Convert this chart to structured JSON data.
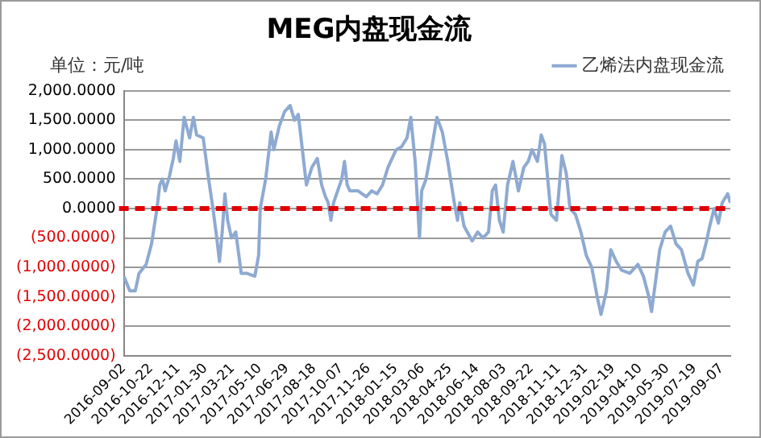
{
  "chart_data": {
    "type": "line",
    "title": "MEG内盘现金流",
    "ylabel": "单位：元/吨",
    "legend": "top right",
    "grid": "y",
    "ylim": [
      -2500,
      2000
    ],
    "yticks": [
      {
        "value": 2000,
        "label": "2,000.0000"
      },
      {
        "value": 1500,
        "label": "1,500.0000"
      },
      {
        "value": 1000,
        "label": "1,000.0000"
      },
      {
        "value": 500,
        "label": "500.0000"
      },
      {
        "value": 0,
        "label": "0.0000"
      },
      {
        "value": -500,
        "label": "(500.0000)"
      },
      {
        "value": -1000,
        "label": "(1,000.0000)"
      },
      {
        "value": -1500,
        "label": "(1,500.0000)"
      },
      {
        "value": -2000,
        "label": "(2,000.0000)"
      },
      {
        "value": -2500,
        "label": "(2,500.0000)"
      }
    ],
    "xlim": [
      "2016-09-02",
      "2019-09-23"
    ],
    "xticks": [
      "2016-09-02",
      "2016-10-22",
      "2016-12-11",
      "2017-01-30",
      "2017-03-21",
      "2017-05-10",
      "2017-06-29",
      "2017-08-18",
      "2017-10-07",
      "2017-11-26",
      "2018-01-15",
      "2018-03-06",
      "2018-04-25",
      "2018-06-14",
      "2018-08-03",
      "2018-09-22",
      "2018-11-11",
      "2018-12-31",
      "2019-02-19",
      "2019-04-10",
      "2019-05-30",
      "2019-07-19",
      "2019-09-07"
    ],
    "ref_lines": [
      {
        "axis": "y",
        "value": 0,
        "color": "#e00000",
        "line_style": "dashed"
      }
    ],
    "marker": "none",
    "line_style": "solid",
    "x": [
      "2016-09-02",
      "2016-09-13",
      "2016-09-23",
      "2016-09-30",
      "2016-10-13",
      "2016-10-23",
      "2016-11-02",
      "2016-11-07",
      "2016-11-12",
      "2016-11-17",
      "2016-11-25",
      "2016-12-02",
      "2016-12-07",
      "2016-12-14",
      "2016-12-22",
      "2017-01-01",
      "2017-01-08",
      "2017-01-14",
      "2017-01-26",
      "2017-02-05",
      "2017-02-13",
      "2017-02-20",
      "2017-02-25",
      "2017-03-02",
      "2017-03-07",
      "2017-03-12",
      "2017-03-19",
      "2017-03-27",
      "2017-04-06",
      "2017-04-16",
      "2017-05-01",
      "2017-05-08",
      "2017-05-11",
      "2017-05-21",
      "2017-05-31",
      "2017-06-05",
      "2017-06-15",
      "2017-06-25",
      "2017-07-05",
      "2017-07-13",
      "2017-07-20",
      "2017-07-25",
      "2017-08-04",
      "2017-08-14",
      "2017-08-24",
      "2017-09-01",
      "2017-09-08",
      "2017-09-13",
      "2017-09-18",
      "2017-09-23",
      "2017-10-08",
      "2017-10-13",
      "2017-10-18",
      "2017-10-23",
      "2017-11-07",
      "2017-11-22",
      "2017-12-02",
      "2017-12-12",
      "2017-12-22",
      "2018-01-01",
      "2018-01-16",
      "2018-01-26",
      "2018-02-05",
      "2018-02-12",
      "2018-02-20",
      "2018-02-28",
      "2018-03-04",
      "2018-03-12",
      "2018-03-22",
      "2018-04-01",
      "2018-04-11",
      "2018-04-21",
      "2018-05-03",
      "2018-05-09",
      "2018-05-13",
      "2018-05-21",
      "2018-06-05",
      "2018-06-15",
      "2018-06-25",
      "2018-07-05",
      "2018-07-12",
      "2018-07-18",
      "2018-07-25",
      "2018-08-01",
      "2018-08-09",
      "2018-08-19",
      "2018-08-29",
      "2018-09-08",
      "2018-09-16",
      "2018-09-23",
      "2018-10-03",
      "2018-10-10",
      "2018-10-16",
      "2018-10-28",
      "2018-11-07",
      "2018-11-17",
      "2018-11-25",
      "2018-12-02",
      "2018-12-12",
      "2018-12-22",
      "2019-01-01",
      "2019-01-11",
      "2019-01-21",
      "2019-01-28",
      "2019-02-07",
      "2019-02-15",
      "2019-02-25",
      "2019-03-07",
      "2019-03-22",
      "2019-04-06",
      "2019-04-16",
      "2019-04-26",
      "2019-05-01",
      "2019-05-06",
      "2019-05-16",
      "2019-05-26",
      "2019-06-05",
      "2019-06-15",
      "2019-06-25",
      "2019-07-07",
      "2019-07-17",
      "2019-07-25",
      "2019-08-02",
      "2019-08-09",
      "2019-08-16",
      "2019-08-24",
      "2019-09-01",
      "2019-09-08",
      "2019-09-18",
      "2019-09-23"
    ],
    "series": [
      {
        "name": "乙烯法内盘现金流",
        "color": "#8eaad2",
        "values": [
          -1150,
          -1400,
          -1400,
          -1100,
          -950,
          -600,
          0,
          400,
          500,
          300,
          550,
          850,
          1150,
          800,
          1550,
          1200,
          1550,
          1250,
          1200,
          500,
          0,
          -500,
          -900,
          -400,
          250,
          -200,
          -500,
          -400,
          -1100,
          -1100,
          -1150,
          -800,
          0,
          500,
          1300,
          1000,
          1400,
          1650,
          1750,
          1500,
          1600,
          1200,
          400,
          700,
          850,
          400,
          200,
          100,
          -200,
          100,
          500,
          800,
          400,
          300,
          300,
          200,
          300,
          250,
          400,
          700,
          1000,
          1050,
          1200,
          1550,
          800,
          -500,
          300,
          500,
          1000,
          1550,
          1300,
          800,
          100,
          -200,
          100,
          -300,
          -550,
          -400,
          -500,
          -400,
          300,
          400,
          -200,
          -400,
          400,
          800,
          300,
          700,
          800,
          1000,
          800,
          1250,
          1100,
          -100,
          -200,
          900,
          600,
          0,
          -100,
          -400,
          -800,
          -1000,
          -1500,
          -1800,
          -1400,
          -700,
          -900,
          -1050,
          -1100,
          -950,
          -1150,
          -1500,
          -1750,
          -1400,
          -700,
          -400,
          -300,
          -600,
          -700,
          -1100,
          -1300,
          -900,
          -850,
          -600,
          -300,
          0,
          -250,
          100,
          250,
          100
        ]
      }
    ]
  }
}
